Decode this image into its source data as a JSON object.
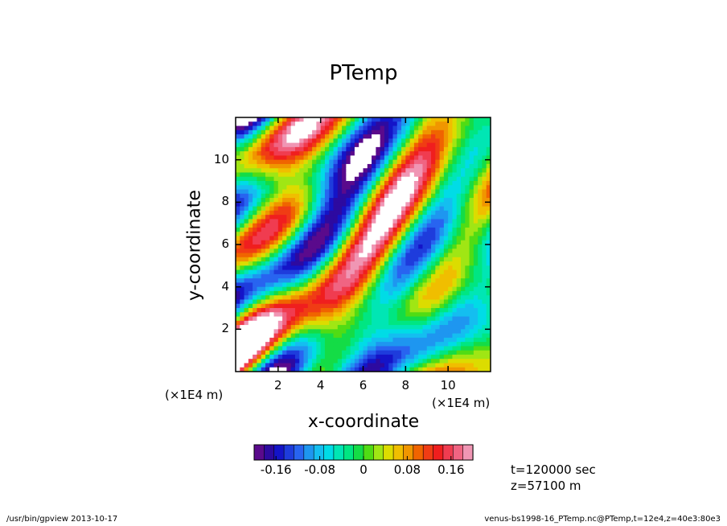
{
  "chart_data": {
    "type": "heatmap",
    "title": "PTemp",
    "xlabel": "x-coordinate",
    "ylabel": "y-coordinate",
    "xlim": [
      0,
      12
    ],
    "ylim": [
      0,
      12
    ],
    "x_ticks": [
      2,
      4,
      6,
      8,
      10
    ],
    "y_ticks": [
      2,
      4,
      6,
      8,
      10
    ],
    "x_unit": "(×1E4 m)",
    "y_unit": "(×1E4 m)",
    "colorbar": {
      "min": -0.2,
      "max": 0.2,
      "ticks": [
        "-0.16",
        "-0.08",
        "0",
        "0.08",
        "0.16"
      ],
      "tick_values": [
        -0.16,
        -0.08,
        0,
        0.08,
        0.16
      ],
      "colors": [
        "#5a0a8c",
        "#2d0aa0",
        "#1414c8",
        "#1e3cdc",
        "#2864f0",
        "#1e96f0",
        "#14bef0",
        "#00dce6",
        "#00e6b4",
        "#00e682",
        "#14dc46",
        "#50dc14",
        "#a0e614",
        "#dcdc00",
        "#f0be00",
        "#f09600",
        "#f06400",
        "#f03c14",
        "#f01e1e",
        "#f03c50",
        "#f06482",
        "#f096b4"
      ]
    },
    "annotations": [
      "t=120000 sec",
      "z=57100 m"
    ],
    "footer_left": "/usr/bin/gpview   2013-10-17",
    "footer_right": "venus-bs1998-16_PTemp.nc@PTemp,t=12e4,z=40e3:80e3"
  },
  "colors": {
    "background": "#ffffff",
    "frame": "#000000"
  }
}
